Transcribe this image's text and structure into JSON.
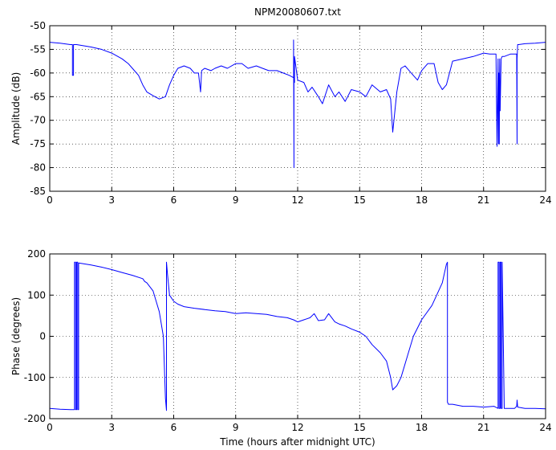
{
  "title": "NPM20080607.txt",
  "chart_data": [
    {
      "type": "line",
      "name": "amplitude",
      "ylabel": "Amplitude (dB)",
      "xlabel": "",
      "xlim": [
        0,
        24
      ],
      "ylim": [
        -85,
        -50
      ],
      "xticks": [
        0,
        3,
        6,
        9,
        12,
        15,
        18,
        21,
        24
      ],
      "yticks": [
        -85,
        -80,
        -75,
        -70,
        -65,
        -60,
        -55,
        -50
      ],
      "grid": true,
      "line_color": "#0000ff",
      "series": [
        {
          "x": [
            0,
            0.5,
            1.0,
            1.1,
            1.1,
            1.15,
            1.15,
            1.2,
            1.3,
            2.0,
            2.5,
            3.0,
            3.5,
            3.8,
            4.0,
            4.3,
            4.5,
            4.7,
            5.0,
            5.3,
            5.6,
            5.8,
            6.0,
            6.2,
            6.5,
            6.8,
            7.0,
            7.2,
            7.3,
            7.35,
            7.5,
            7.8,
            8.0,
            8.3,
            8.6,
            9.0,
            9.3,
            9.6,
            10.0,
            10.3,
            10.6,
            11.0,
            11.3,
            11.6,
            11.8,
            11.8,
            11.82,
            11.82,
            11.85,
            11.85,
            12.0,
            12.3,
            12.5,
            12.7,
            13.0,
            13.2,
            13.5,
            13.8,
            14.0,
            14.3,
            14.6,
            15.0,
            15.3,
            15.6,
            16.0,
            16.3,
            16.5,
            16.6,
            16.8,
            17.0,
            17.2,
            17.5,
            17.8,
            18.0,
            18.3,
            18.6,
            18.8,
            19.0,
            19.2,
            19.5,
            20.0,
            20.5,
            21.0,
            21.3,
            21.5,
            21.6,
            21.65,
            21.7,
            21.72,
            21.74,
            21.76,
            21.78,
            21.8,
            21.85,
            21.9,
            22.0,
            22.3,
            22.6,
            22.62,
            22.62,
            22.65,
            22.7,
            23.0,
            23.5,
            24
          ],
          "y": [
            -53.5,
            -53.7,
            -54,
            -54,
            -60.5,
            -60.5,
            -54,
            -54,
            -54,
            -54.5,
            -55,
            -55.8,
            -57,
            -58,
            -59,
            -60.5,
            -62.5,
            -64,
            -64.8,
            -65.5,
            -65,
            -62.5,
            -60.5,
            -59,
            -58.5,
            -59,
            -60,
            -60,
            -64,
            -59.5,
            -59,
            -59.5,
            -59,
            -58.5,
            -59,
            -58,
            -58,
            -59,
            -58.5,
            -59,
            -59.5,
            -59.5,
            -60,
            -60.5,
            -61,
            -53,
            -80,
            -61,
            -62,
            -56.5,
            -61.5,
            -62,
            -64,
            -63,
            -65,
            -66.5,
            -62.5,
            -65,
            -64,
            -66,
            -63.5,
            -64,
            -65,
            -62.5,
            -64,
            -63.5,
            -65.5,
            -72.5,
            -64,
            -59,
            -58.5,
            -60,
            -61.5,
            -59.5,
            -58,
            -58,
            -62,
            -63.5,
            -62.5,
            -57.5,
            -57,
            -56.5,
            -55.8,
            -56,
            -56,
            -56,
            -75.5,
            -57,
            -75,
            -60,
            -75,
            -57,
            -68,
            -57,
            -56.5,
            -56.5,
            -56,
            -56,
            -75,
            -57,
            -54,
            -54,
            -53.8,
            -53.7,
            -53.5
          ]
        }
      ]
    },
    {
      "type": "line",
      "name": "phase",
      "ylabel": "Phase (degrees)",
      "xlabel": "Time (hours after midnight UTC)",
      "xlim": [
        0,
        24
      ],
      "ylim": [
        -200,
        200
      ],
      "xticks": [
        0,
        3,
        6,
        9,
        12,
        15,
        18,
        21,
        24
      ],
      "yticks": [
        -200,
        -100,
        0,
        100,
        200
      ],
      "grid": true,
      "line_color": "#0000ff",
      "series": [
        {
          "x": [
            0,
            0.5,
            1.0,
            1.2,
            1.2,
            1.25,
            1.25,
            1.3,
            1.3,
            1.35,
            1.35,
            1.4,
            1.4,
            2.0,
            2.5,
            3.0,
            3.5,
            4.0,
            4.5,
            4.6,
            4.7,
            5.0,
            5.3,
            5.5,
            5.6,
            5.65,
            5.65,
            5.7,
            5.8,
            6.0,
            6.2,
            6.5,
            7.0,
            7.5,
            8.0,
            8.5,
            9.0,
            9.5,
            10.0,
            10.5,
            11.0,
            11.5,
            11.8,
            12.0,
            12.3,
            12.6,
            12.8,
            13.0,
            13.3,
            13.5,
            13.8,
            14.0,
            14.3,
            14.6,
            15.0,
            15.3,
            15.6,
            16.0,
            16.3,
            16.5,
            16.6,
            16.8,
            17.0,
            17.3,
            17.6,
            18.0,
            18.5,
            19.0,
            19.2,
            19.25,
            19.25,
            19.3,
            19.5,
            20.0,
            20.5,
            21.0,
            21.5,
            21.7,
            21.7,
            21.75,
            21.75,
            21.8,
            21.8,
            21.85,
            21.85,
            21.9,
            21.9,
            22.0,
            22.5,
            22.6,
            22.62,
            22.65,
            23.0,
            23.5,
            24
          ],
          "y": [
            -175,
            -177,
            -178,
            -178,
            180,
            180,
            -178,
            -178,
            180,
            180,
            -178,
            -178,
            178,
            173,
            168,
            162,
            155,
            148,
            140,
            133,
            130,
            110,
            60,
            0,
            -150,
            -180,
            180,
            150,
            100,
            85,
            78,
            72,
            68,
            65,
            62,
            60,
            55,
            57,
            55,
            53,
            48,
            45,
            40,
            35,
            40,
            45,
            55,
            38,
            40,
            55,
            35,
            30,
            25,
            18,
            10,
            0,
            -20,
            -40,
            -60,
            -100,
            -130,
            -120,
            -100,
            -50,
            0,
            40,
            75,
            130,
            175,
            180,
            -160,
            -165,
            -165,
            -170,
            -170,
            -172,
            -170,
            -175,
            180,
            180,
            -175,
            -175,
            180,
            180,
            -175,
            -175,
            180,
            -175,
            -175,
            -170,
            -155,
            -172,
            -175,
            -175,
            -176
          ]
        }
      ]
    }
  ]
}
